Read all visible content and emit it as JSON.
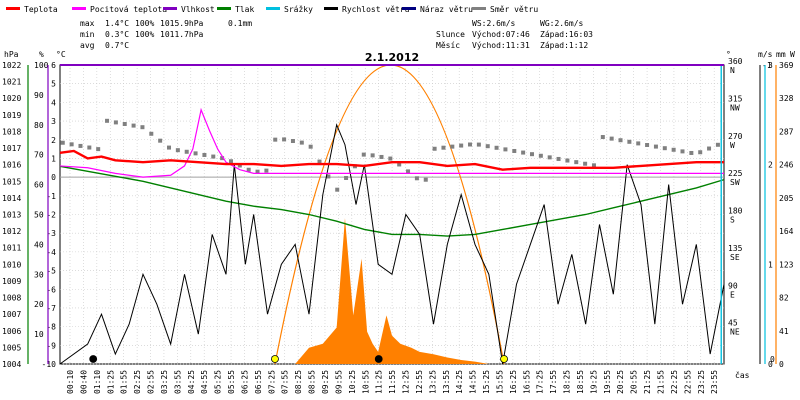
{
  "legend": [
    {
      "label": "Teplota",
      "color": "#ff0000"
    },
    {
      "label": "Pocitová teplota",
      "color": "#ff00ff"
    },
    {
      "label": "Vlhkost",
      "color": "#8000c0"
    },
    {
      "label": "Tlak",
      "color": "#008000"
    },
    {
      "label": "Srážky",
      "color": "#00c0e0"
    },
    {
      "label": "Rychlost větru",
      "color": "#000000"
    },
    {
      "label": "Náraz větru",
      "color": "#000080"
    },
    {
      "label": "Směr větru",
      "color": "#808080"
    }
  ],
  "stats": {
    "row_max": {
      "label": "max",
      "temp": "1.4°C",
      "hum": "100%",
      "press": "1015.9hPa",
      "rain": "0.1mm"
    },
    "row_min": {
      "label": "min",
      "temp": "0.3°C",
      "hum": "100%",
      "press": "1011.7hPa"
    },
    "row_avg": {
      "label": "avg",
      "temp": "0.7°C"
    }
  },
  "wind_info": {
    "ws": "WS:2.6m/s",
    "wg": "WG:2.6m/s"
  },
  "sun_info": {
    "label": "Slunce",
    "rise": "Východ:07:46",
    "set": "Západ:16:03"
  },
  "moon_info": {
    "label": "Měsíc",
    "rise": "Východ:11:31",
    "set": "Západ:1:12"
  },
  "time_unit_label": "čas",
  "colors": {
    "temp": "#ff0000",
    "feels": "#ff00ff",
    "humidity": "#8000c0",
    "pressure": "#008000",
    "rain": "#00c0e0",
    "wind": "#000000",
    "gust": "#000080",
    "dir": "#808080",
    "sun": "#ff8000",
    "solar": "#ff8000",
    "grid": "#c8c8c8"
  },
  "chart_data": {
    "type": "line",
    "title": "2.1.2012",
    "axes": {
      "hpa": {
        "label": "hPa",
        "range": [
          1004,
          1022
        ],
        "ticks": [
          "1004",
          "1005",
          "1006",
          "1007",
          "1008",
          "1009",
          "1010",
          "1011",
          "1012",
          "1013",
          "1014",
          "1015",
          "1016",
          "1017",
          "1018",
          "1019",
          "1020",
          "1021",
          "1022"
        ]
      },
      "percent": {
        "label": "%",
        "range": [
          0,
          100
        ],
        "ticks": [
          "10",
          "20",
          "30",
          "40",
          "50",
          "60",
          "70",
          "80",
          "90",
          "100"
        ]
      },
      "celsius": {
        "label": "°C",
        "range": [
          -10,
          6
        ],
        "ticks": [
          "-10",
          "-9",
          "-8",
          "-7",
          "-6",
          "-5",
          "-4",
          "-3",
          "-2",
          "-1",
          "0",
          "1",
          "2",
          "3",
          "4",
          "5",
          "6"
        ]
      },
      "direction": {
        "label": "°",
        "ticks": [
          {
            "deg": "45",
            "name": "NE"
          },
          {
            "deg": "90",
            "name": "E"
          },
          {
            "deg": "135",
            "name": "SE"
          },
          {
            "deg": "180",
            "name": "S"
          },
          {
            "deg": "225",
            "name": "SW"
          },
          {
            "deg": "270",
            "name": "W"
          },
          {
            "deg": "315",
            "name": "NW"
          },
          {
            "deg": "360",
            "name": "N"
          }
        ]
      },
      "wind": {
        "label": "m/s",
        "range": [
          0,
          3
        ],
        "ticks": [
          "0",
          "1",
          "2",
          "3"
        ]
      },
      "rain": {
        "label": "mm",
        "ticks": [
          "0",
          "-1"
        ]
      },
      "solar": {
        "label": "W",
        "range": [
          0,
          369
        ],
        "ticks": [
          "0",
          "41",
          "82",
          "123",
          "164",
          "205",
          "246",
          "287",
          "328",
          "369"
        ]
      },
      "x": {
        "label": "čas",
        "ticks": [
          "00:10",
          "00:40",
          "01:10",
          "01:25",
          "01:55",
          "02:25",
          "02:55",
          "03:25",
          "03:55",
          "04:25",
          "04:55",
          "05:25",
          "05:55",
          "06:25",
          "06:55",
          "07:25",
          "07:55",
          "08:25",
          "08:55",
          "09:25",
          "09:55",
          "10:25",
          "10:55",
          "11:25",
          "11:55",
          "12:25",
          "12:55",
          "13:25",
          "13:55",
          "14:25",
          "14:55",
          "15:25",
          "15:55",
          "16:25",
          "16:55",
          "17:25",
          "17:55",
          "18:25",
          "18:55",
          "19:25",
          "19:55",
          "20:25",
          "20:55",
          "21:25",
          "21:55",
          "22:25",
          "22:55",
          "23:25",
          "23:55"
        ]
      }
    },
    "series": [
      {
        "name": "Teplota",
        "unit": "°C",
        "x_hours": [
          0,
          0.5,
          1,
          1.5,
          2,
          3,
          4,
          5,
          6,
          7,
          8,
          9,
          10,
          11,
          12,
          13,
          14,
          15,
          16,
          17,
          18,
          19,
          20,
          21,
          22,
          23,
          24
        ],
        "values": [
          1.3,
          1.4,
          1.0,
          1.1,
          0.9,
          0.8,
          0.9,
          0.8,
          0.7,
          0.7,
          0.6,
          0.7,
          0.7,
          0.6,
          0.8,
          0.8,
          0.6,
          0.7,
          0.4,
          0.5,
          0.5,
          0.5,
          0.5,
          0.6,
          0.7,
          0.8,
          0.8
        ]
      },
      {
        "name": "Pocitová teplota",
        "unit": "°C",
        "x_hours": [
          0,
          1,
          2,
          3,
          4,
          4.5,
          4.8,
          5.1,
          5.4,
          5.7,
          6,
          6.5,
          7,
          9,
          12,
          15,
          18,
          21,
          24
        ],
        "values": [
          0.6,
          0.5,
          0.2,
          0,
          0.1,
          0.6,
          1.5,
          3.6,
          2.5,
          1.5,
          0.8,
          0.4,
          0.2,
          0.2,
          0.2,
          0.2,
          0.2,
          0.2,
          0.2
        ]
      },
      {
        "name": "Vlhkost",
        "unit": "%",
        "x_hours": [
          0,
          24
        ],
        "values": [
          100,
          100
        ]
      },
      {
        "name": "Tlak",
        "unit": "hPa",
        "x_hours": [
          0,
          1,
          2,
          3,
          4,
          5,
          6,
          7,
          8,
          9,
          10,
          11,
          12,
          13,
          14,
          15,
          16,
          17,
          18,
          19,
          20,
          21,
          22,
          23,
          24
        ],
        "values": [
          1015.9,
          1015.6,
          1015.3,
          1015.0,
          1014.6,
          1014.2,
          1013.8,
          1013.5,
          1013.3,
          1013.0,
          1012.6,
          1012.1,
          1011.8,
          1011.8,
          1011.7,
          1011.8,
          1012.1,
          1012.4,
          1012.7,
          1013.0,
          1013.4,
          1013.8,
          1014.2,
          1014.6,
          1015.1
        ]
      },
      {
        "name": "Rychlost větru",
        "unit": "m/s",
        "x_hours": [
          0,
          1,
          1.5,
          2,
          2.5,
          3,
          3.5,
          4,
          4.5,
          5,
          5.5,
          6,
          6.3,
          6.7,
          7,
          7.5,
          8,
          8.5,
          9,
          9.5,
          10,
          10.3,
          10.7,
          11,
          11.5,
          12,
          12.5,
          13,
          13.5,
          14,
          14.5,
          15,
          15.5,
          16,
          16.5,
          17,
          17.5,
          18,
          18.5,
          19,
          19.5,
          20,
          20.5,
          21,
          21.5,
          22,
          22.5,
          23,
          23.5,
          24
        ],
        "values": [
          0,
          0.2,
          0.5,
          0.1,
          0.4,
          0.9,
          0.6,
          0.2,
          0.9,
          0.3,
          1.3,
          0.9,
          2.0,
          1.0,
          1.5,
          0.5,
          1.0,
          1.2,
          0.5,
          1.7,
          2.4,
          2.2,
          1.6,
          2.0,
          1.0,
          0.9,
          1.5,
          1.3,
          0.4,
          1.2,
          1.7,
          1.2,
          0.9,
          0.0,
          0.8,
          1.2,
          1.6,
          0.6,
          1.1,
          0.4,
          1.4,
          0.7,
          2.0,
          1.6,
          0.4,
          1.8,
          0.6,
          1.2,
          0.1,
          0.8
        ]
      },
      {
        "name": "Směr větru",
        "unit": "°",
        "x_hours": [
          0,
          1,
          2,
          3,
          4,
          5,
          6,
          7,
          8,
          9,
          10,
          11,
          12,
          13,
          14,
          15,
          16,
          17,
          18,
          19,
          20,
          21,
          22,
          23,
          24
        ],
        "values": [
          270,
          270,
          270,
          270,
          250,
          250,
          250,
          240,
          250,
          250,
          200,
          250,
          250,
          230,
          240,
          250,
          250,
          250,
          250,
          250,
          250,
          250,
          250,
          250,
          270
        ]
      },
      {
        "name": "Slunce",
        "unit": "W",
        "x_hours": [
          7.77,
          12,
          16.05
        ],
        "values": [
          0,
          369,
          0
        ]
      },
      {
        "name": "Srážky",
        "unit": "mm",
        "x_hours": [
          0,
          23.9,
          24
        ],
        "values": [
          0,
          0,
          0.1
        ]
      }
    ],
    "solar_radiation": {
      "unit": "W",
      "x_hours": [
        8.5,
        9.0,
        9.5,
        10.0,
        10.3,
        10.6,
        10.9,
        11.1,
        11.3,
        11.5,
        11.8,
        12.0,
        12.3,
        12.7,
        13.0,
        13.5,
        14.0,
        14.5,
        15.0,
        15.5
      ],
      "values": [
        0,
        20,
        25,
        45,
        180,
        60,
        130,
        40,
        25,
        15,
        60,
        35,
        25,
        20,
        15,
        12,
        8,
        5,
        3,
        0
      ]
    },
    "markers": {
      "sunrise_hour": 7.77,
      "sunset_hour": 16.05,
      "moonrise_hour": 11.52,
      "moonset_hour": 1.2
    },
    "grid": true,
    "legend_position": "top"
  }
}
